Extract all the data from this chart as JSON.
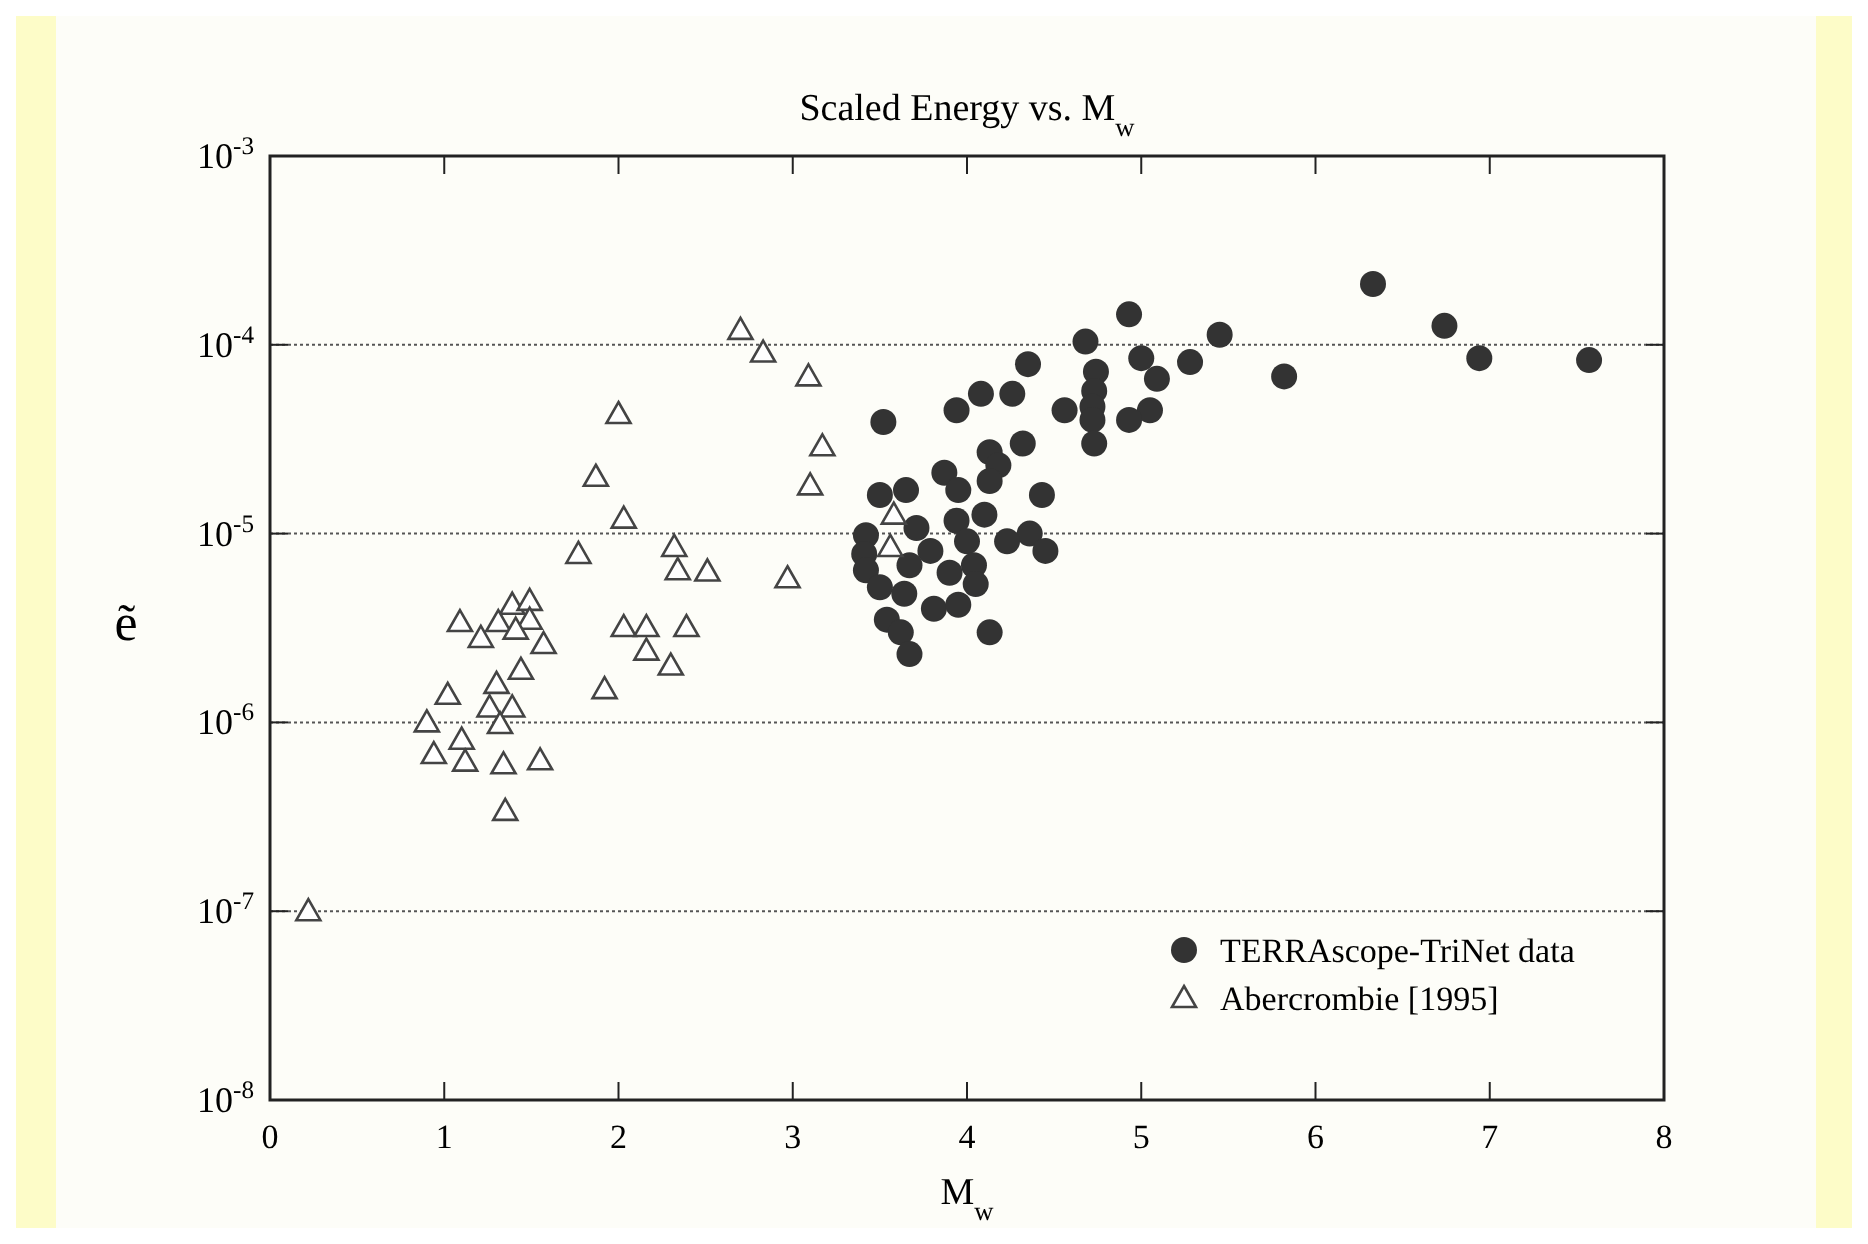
{
  "chart_data": {
    "type": "scatter",
    "title": "Scaled Energy vs. M$_{w}$",
    "xlabel": "M$_{w}$",
    "ylabel": "ẽ",
    "xlim": [
      0,
      8
    ],
    "xticks": [
      0,
      1,
      2,
      3,
      4,
      5,
      6,
      7,
      8
    ],
    "ylim": [
      1e-08,
      0.001
    ],
    "yticks": [
      {
        "value": 1e-08,
        "label": "10$^{-8}$"
      },
      {
        "value": 1e-07,
        "label": "10$^{-7}$"
      },
      {
        "value": 1e-06,
        "label": "10$^{-6}$"
      },
      {
        "value": 1e-05,
        "label": "10$^{-5}$"
      },
      {
        "value": 0.0001,
        "label": "10$^{-4}$"
      },
      {
        "value": 0.001,
        "label": "10$^{-3}$"
      }
    ],
    "log": "y",
    "grid": "y",
    "legend": "bottom right",
    "series": [
      {
        "name": "TERRAscope-TriNet data",
        "color": "#333333",
        "marker": "circle",
        "x": [
          6.33,
          4.93,
          6.74,
          4.68,
          5.45,
          6.94,
          7.57,
          5.0,
          5.28,
          4.35,
          4.74,
          5.09,
          5.82,
          4.08,
          4.26,
          4.73,
          3.94,
          4.56,
          4.72,
          5.05,
          3.52,
          4.72,
          4.93,
          4.73,
          4.32,
          4.13,
          4.18,
          4.13,
          3.87,
          3.5,
          3.65,
          3.95,
          4.43,
          4.1,
          3.94,
          3.71,
          3.42,
          4.36,
          4.45,
          4.23,
          4.0,
          3.79,
          3.41,
          4.04,
          3.67,
          3.42,
          3.9,
          4.05,
          3.5,
          3.64,
          3.81,
          3.95,
          3.54,
          3.62,
          4.13,
          3.67
        ],
        "values": [
          0.00021,
          0.000145,
          0.000126,
          0.000104,
          0.000113,
          8.5e-05,
          8.3e-05,
          8.5e-05,
          8.1e-05,
          7.9e-05,
          7.2e-05,
          6.6e-05,
          6.8e-05,
          5.5e-05,
          5.5e-05,
          5.7e-05,
          4.5e-05,
          4.5e-05,
          4.7e-05,
          4.5e-05,
          3.9e-05,
          4e-05,
          4e-05,
          3e-05,
          3e-05,
          2.7e-05,
          2.3e-05,
          1.9e-05,
          2.1e-05,
          1.6e-05,
          1.7e-05,
          1.7e-05,
          1.6e-05,
          1.26e-05,
          1.17e-05,
          1.07e-05,
          9.8e-06,
          1e-05,
          8.1e-06,
          9.1e-06,
          9.1e-06,
          8.1e-06,
          7.8e-06,
          6.8e-06,
          6.8e-06,
          6.4e-06,
          6.2e-06,
          5.4e-06,
          5.2e-06,
          4.8e-06,
          4e-06,
          4.2e-06,
          3.5e-06,
          3e-06,
          3e-06,
          2.3e-06
        ]
      },
      {
        "name": "Abercrombie [1995]",
        "color": "#444444",
        "marker": "triangle",
        "x": [
          0.22,
          2.7,
          2.83,
          3.09,
          2.0,
          3.17,
          1.87,
          3.1,
          2.03,
          1.77,
          2.32,
          2.34,
          2.51,
          2.97,
          1.39,
          1.49,
          1.09,
          1.31,
          1.49,
          1.21,
          1.41,
          1.57,
          2.03,
          2.16,
          2.39,
          2.16,
          2.3,
          1.44,
          1.92,
          1.02,
          1.3,
          1.26,
          1.39,
          1.32,
          0.9,
          1.1,
          0.94,
          1.12,
          1.34,
          1.55,
          1.35,
          3.58,
          3.56
        ],
        "values": [
          1e-07,
          0.00012,
          9.1e-05,
          6.8e-05,
          4.3e-05,
          2.9e-05,
          2e-05,
          1.8e-05,
          1.2e-05,
          7.8e-06,
          8.5e-06,
          6.4e-06,
          6.3e-06,
          5.8e-06,
          4.2e-06,
          4.4e-06,
          3.4e-06,
          3.4e-06,
          3.5e-06,
          2.8e-06,
          3.1e-06,
          2.6e-06,
          3.2e-06,
          3.2e-06,
          3.2e-06,
          2.4e-06,
          2e-06,
          1.9e-06,
          1.5e-06,
          1.4e-06,
          1.6e-06,
          1.2e-06,
          1.2e-06,
          9.8e-07,
          1e-06,
          8.1e-07,
          6.8e-07,
          6.2e-07,
          6e-07,
          6.3e-07,
          3.4e-07,
          1.26e-05,
          8.5e-06
        ]
      }
    ]
  }
}
